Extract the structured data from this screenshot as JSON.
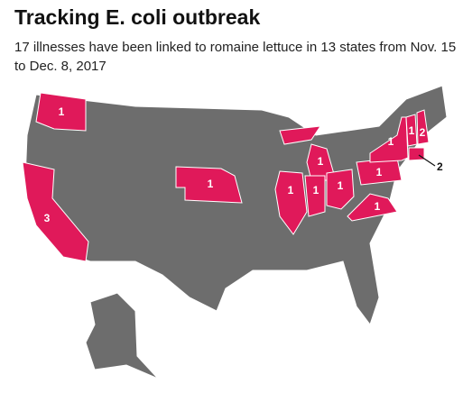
{
  "header": {
    "title": "Tracking E. coli outbreak",
    "subtitle": "17 illnesses have been linked to romaine lettuce in 13 states from Nov. 15 to Dec. 8, 2017"
  },
  "map": {
    "labels": [
      1,
      3,
      1,
      1,
      1,
      1,
      1,
      1,
      1,
      1,
      2,
      1,
      2
    ]
  }
}
